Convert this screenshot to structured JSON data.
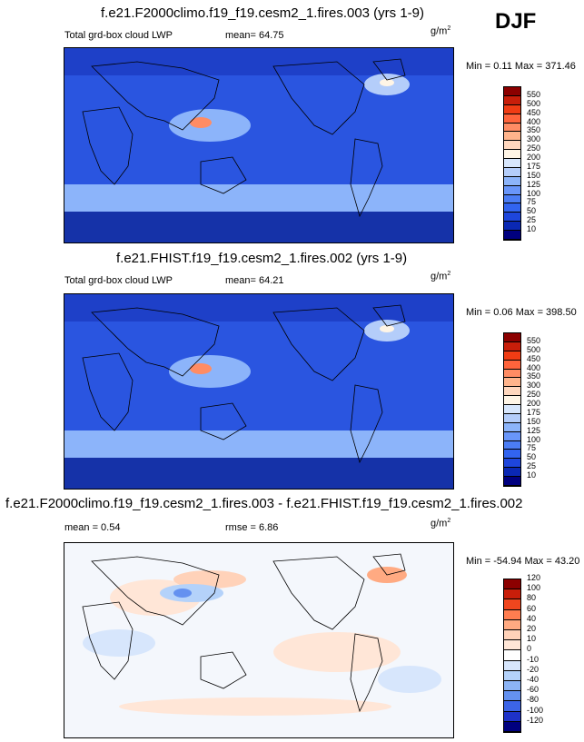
{
  "season": "DJF",
  "units_base": "g/m",
  "units_exp": "2",
  "panels": [
    {
      "title": "f.e21.F2000climo.f19_f19.cesm2_1.fires.003 (yrs 1-9)",
      "label": "Total grd-box cloud LWP",
      "stat": "mean=  64.75",
      "minmax": "Min =   0.11 Max = 371.46"
    },
    {
      "title": "f.e21.FHIST.f19_f19.cesm2_1.fires.002 (yrs 1-9)",
      "label": "Total grd-box cloud LWP",
      "stat": "mean=  64.21",
      "minmax": "Min =   0.06 Max = 398.50"
    },
    {
      "title": "f.e21.F2000climo.f19_f19.cesm2_1.fires.003 - f.e21.FHIST.f19_f19.cesm2_1.fires.002",
      "label": "mean =   0.54",
      "stat": "rmse =   6.86",
      "minmax": "Min = -54.94 Max =  43.20"
    }
  ],
  "colors": {
    "abs_scale": [
      "#00007f",
      "#0a28b4",
      "#1e46dc",
      "#3264f0",
      "#4b7df5",
      "#6996fa",
      "#8cb4fa",
      "#b4cdfa",
      "#d7e6fc",
      "#fff5e6",
      "#ffd7be",
      "#ffb48c",
      "#ff8c64",
      "#ff643c",
      "#f03c14",
      "#c81e0a",
      "#8c0000"
    ],
    "diff_scale": [
      "#00007f",
      "#1e32c8",
      "#3c64e6",
      "#6491f0",
      "#8cb4f5",
      "#b4d2fa",
      "#d7e6fc",
      "#ffffff",
      "#ffe6d7",
      "#ffd2b9",
      "#ffaa82",
      "#ff7d50",
      "#f0461e",
      "#c81e0a",
      "#8c0000"
    ],
    "ocean_blue": "#2a55e0",
    "land": "#000000"
  },
  "chart_data": [
    {
      "type": "heatmap",
      "title": "f.e21.F2000climo.f19_f19.cesm2_1.fires.003 (yrs 1-9)",
      "variable": "Total grd-box cloud LWP",
      "units": "g/m2",
      "mean": 64.75,
      "min": 0.11,
      "max": 371.46,
      "levels": [
        10,
        25,
        50,
        75,
        100,
        125,
        150,
        175,
        200,
        250,
        300,
        350,
        400,
        450,
        500,
        550
      ]
    },
    {
      "type": "heatmap",
      "title": "f.e21.FHIST.f19_f19.cesm2_1.fires.002 (yrs 1-9)",
      "variable": "Total grd-box cloud LWP",
      "units": "g/m2",
      "mean": 64.21,
      "min": 0.06,
      "max": 398.5,
      "levels": [
        10,
        25,
        50,
        75,
        100,
        125,
        150,
        175,
        200,
        250,
        300,
        350,
        400,
        450,
        500,
        550
      ]
    },
    {
      "type": "heatmap",
      "title": "f.e21.F2000climo.f19_f19.cesm2_1.fires.003 - f.e21.FHIST.f19_f19.cesm2_1.fires.002",
      "units": "g/m2",
      "mean": 0.54,
      "rmse": 6.86,
      "min": -54.94,
      "max": 43.2,
      "levels": [
        -120,
        -100,
        -80,
        -60,
        -40,
        -20,
        -10,
        0,
        10,
        20,
        40,
        60,
        80,
        100,
        120
      ]
    }
  ]
}
